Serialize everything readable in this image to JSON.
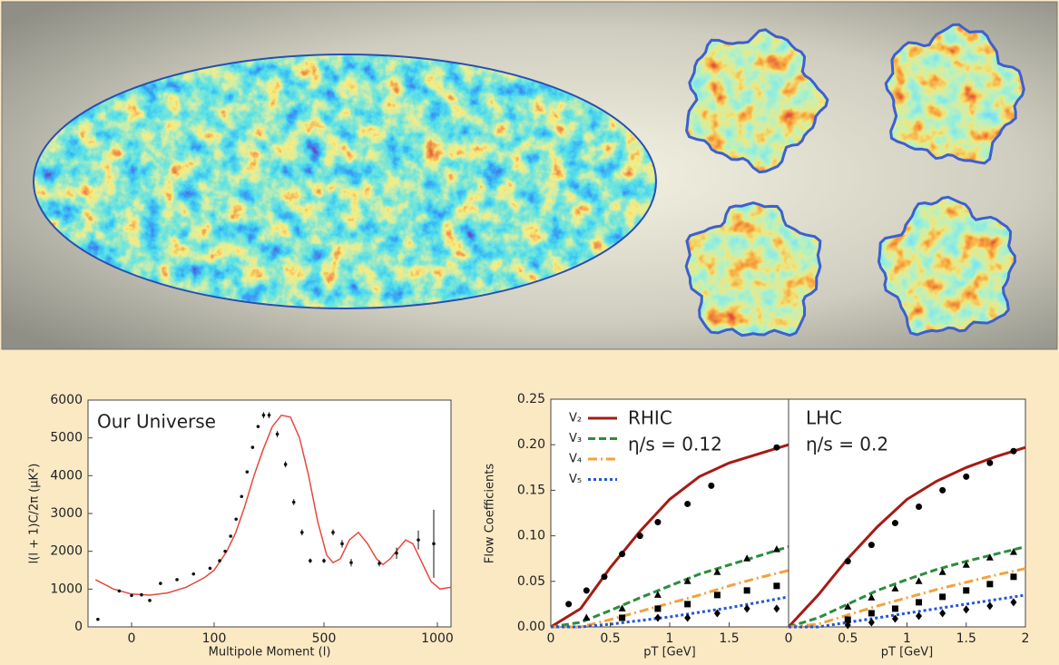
{
  "chart_data": [
    {
      "type": "line",
      "annotation": "Our Universe",
      "xlabel": "Multipole Moment (l)",
      "ylabel": "l(l + 1)C/2π (μK²)",
      "xlim": [
        -53,
        1060
      ],
      "xticks": [
        0,
        100,
        500,
        1000
      ],
      "ylim": [
        0,
        6000
      ],
      "yticks": [
        0,
        1000,
        2000,
        3000,
        4000,
        5000,
        6000
      ],
      "series": [
        {
          "color": "#e8483c",
          "x": [
            -44,
            -22,
            0,
            22,
            44,
            66,
            88,
            100,
            146,
            179,
            212,
            245,
            279,
            312,
            345,
            378,
            411,
            444,
            477,
            512,
            540,
            572,
            612,
            652,
            692,
            732,
            760,
            792,
            832,
            860,
            892,
            932,
            972,
            1012,
            1060
          ],
          "values": [
            1250,
            1000,
            870,
            840,
            900,
            1050,
            1300,
            1500,
            2000,
            2500,
            3200,
            4000,
            4700,
            5300,
            5600,
            5550,
            5000,
            4000,
            2800,
            1900,
            1700,
            1800,
            2300,
            2500,
            2200,
            1800,
            1650,
            1800,
            2100,
            2300,
            2200,
            1700,
            1200,
            1000,
            1050
          ]
        },
        {
          "type": "errorbar",
          "color": "#111111",
          "x": [
            -41,
            -15,
            0,
            12,
            22,
            35,
            55,
            75,
            95,
            120,
            140,
            160,
            180,
            200,
            220,
            240,
            260,
            280,
            300,
            330,
            360,
            390,
            420,
            450,
            500,
            540,
            580,
            620,
            744,
            820,
            916,
            984
          ],
          "values": [
            200,
            950,
            830,
            850,
            700,
            1150,
            1250,
            1400,
            1550,
            1750,
            2000,
            2400,
            2850,
            3450,
            4100,
            4750,
            5300,
            5600,
            5600,
            5100,
            4300,
            3300,
            2500,
            1750,
            1750,
            2500,
            2200,
            1700,
            1680,
            1950,
            2300,
            2200
          ],
          "errors": [
            0,
            0,
            0,
            0,
            0,
            0,
            0,
            0,
            0,
            0,
            0,
            0,
            0,
            0,
            0,
            0,
            0,
            80,
            80,
            80,
            80,
            80,
            80,
            60,
            60,
            80,
            100,
            100,
            80,
            150,
            250,
            900
          ]
        }
      ]
    },
    {
      "type": "line",
      "ylabel": "Flow Coefficients",
      "ylim": [
        0,
        0.25
      ],
      "yticks": [
        {
          "value": 0,
          "label": "0.00"
        },
        0.05,
        {
          "value": 0.1,
          "label": "0.10"
        },
        0.15,
        {
          "value": 0.2,
          "label": "0.20"
        },
        0.25
      ],
      "legend": "upper left",
      "series": [
        {
          "name": "V₂",
          "color": "#a51b14"
        },
        {
          "name": "V₃",
          "color": "#2b8c3c"
        },
        {
          "name": "V₄",
          "color": "#f4a13d"
        },
        {
          "name": "V₅",
          "color": "#2455d6"
        }
      ],
      "markers": [
        "circle",
        "triangle",
        "square",
        "diamond"
      ],
      "panels": [
        {
          "title": "RHIC",
          "annotation": "η/s = 0.12",
          "xlabel": "pT [GeV]",
          "xlim": [
            0,
            2
          ],
          "xticks": [
            0,
            0.5,
            1,
            1.5
          ],
          "x": [
            0,
            0.25,
            0.5,
            0.75,
            1,
            1.25,
            1.5,
            1.75,
            2
          ],
          "curves": [
            [
              0,
              0.02,
              0.065,
              0.105,
              0.14,
              0.165,
              0.18,
              0.19,
              0.2
            ],
            [
              0,
              0.005,
              0.018,
              0.032,
              0.045,
              0.058,
              0.068,
              0.078,
              0.088
            ],
            [
              0,
              0,
              0.008,
              0.017,
              0.026,
              0.035,
              0.045,
              0.054,
              0.062
            ],
            [
              0,
              0,
              0.003,
              0.007,
              0.011,
              0.016,
              0.021,
              0.027,
              0.033
            ]
          ],
          "points": [
            {
              "x": [
                0.15,
                0.3,
                0.45,
                0.6,
                0.75,
                0.9,
                1.15,
                1.35,
                1.9
              ],
              "values": [
                0.025,
                0.04,
                0.055,
                0.08,
                0.1,
                0.115,
                0.135,
                0.155,
                0.197
              ]
            },
            {
              "x": [
                0.3,
                0.6,
                0.9,
                1.15,
                1.4,
                1.65,
                1.9
              ],
              "values": [
                0.01,
                0.02,
                0.035,
                0.05,
                0.06,
                0.075,
                0.085
              ]
            },
            {
              "x": [
                0.6,
                0.9,
                1.15,
                1.4,
                1.65,
                1.9
              ],
              "values": [
                0.01,
                0.02,
                0.025,
                0.035,
                0.04,
                0.045
              ]
            },
            {
              "x": [
                0.9,
                1.15,
                1.4,
                1.65,
                1.9
              ],
              "values": [
                0.01,
                0.01,
                0.015,
                0.02,
                0.02
              ]
            }
          ]
        },
        {
          "title": "LHC",
          "annotation": "η/s = 0.2",
          "xlabel": "pT [GeV]",
          "xlim": [
            0,
            2
          ],
          "xticks": [
            0,
            0.5,
            1,
            1.5,
            2
          ],
          "x": [
            0,
            0.25,
            0.5,
            0.75,
            1,
            1.25,
            1.5,
            1.75,
            2
          ],
          "curves": [
            [
              0,
              0.035,
              0.075,
              0.11,
              0.14,
              0.16,
              0.175,
              0.187,
              0.197
            ],
            [
              0,
              0.01,
              0.025,
              0.04,
              0.052,
              0.063,
              0.072,
              0.08,
              0.088
            ],
            [
              0,
              0.003,
              0.013,
              0.023,
              0.032,
              0.041,
              0.049,
              0.057,
              0.064
            ],
            [
              0,
              0,
              0.005,
              0.01,
              0.015,
              0.02,
              0.025,
              0.03,
              0.035
            ]
          ],
          "points": [
            {
              "x": [
                0.5,
                0.7,
                0.9,
                1.1,
                1.3,
                1.5,
                1.7,
                1.9
              ],
              "values": [
                0.072,
                0.09,
                0.114,
                0.132,
                0.15,
                0.165,
                0.18,
                0.193
              ]
            },
            {
              "x": [
                0.5,
                0.7,
                0.9,
                1.1,
                1.3,
                1.5,
                1.7,
                1.9
              ],
              "values": [
                0.022,
                0.032,
                0.042,
                0.05,
                0.06,
                0.068,
                0.076,
                0.082
              ]
            },
            {
              "x": [
                0.5,
                0.7,
                0.9,
                1.1,
                1.3,
                1.5,
                1.7,
                1.9
              ],
              "values": [
                0.008,
                0.015,
                0.02,
                0.027,
                0.033,
                0.04,
                0.047,
                0.055
              ]
            },
            {
              "x": [
                0.5,
                0.7,
                0.9,
                1.1,
                1.3,
                1.5,
                1.7,
                1.9
              ],
              "values": [
                0.002,
                0.005,
                0.009,
                0.012,
                0.015,
                0.019,
                0.023,
                0.027
              ]
            }
          ]
        }
      ]
    }
  ]
}
